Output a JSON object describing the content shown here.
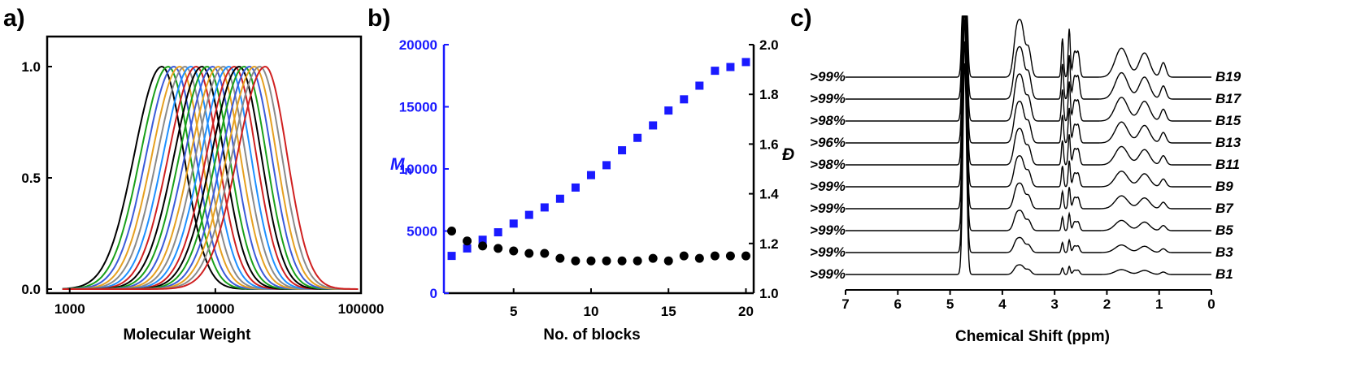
{
  "colors": {
    "blue_axis": "#1a1aff",
    "black": "#000000"
  },
  "panels": {
    "a": {
      "label": "a)"
    },
    "b": {
      "label": "b)"
    },
    "c": {
      "label": "c)"
    }
  },
  "chart_data": [
    {
      "panel": "a)",
      "type": "line",
      "xlabel": "Molecular Weight",
      "ylabel": "",
      "x_scale": "log",
      "xlim": [
        700,
        100000
      ],
      "ylim": [
        0,
        1.05
      ],
      "x_ticks": [
        "1000",
        "10000",
        "100000"
      ],
      "y_ticks": [
        "0.0",
        "0.5",
        "1.0"
      ],
      "curve_shape": "normalized log-normal distributions (peak = 1.0)",
      "series_colors": [
        "#000000",
        "#1aa01a",
        "#3b5bd9",
        "#e6a020",
        "#8a8a8a",
        "#1e90ff",
        "#d02020",
        "#000000",
        "#1aa01a",
        "#3b5bd9",
        "#e6a020",
        "#8a8a8a",
        "#1e90ff",
        "#d02020",
        "#000000",
        "#1aa01a",
        "#3b5bd9",
        "#e6a020",
        "#8a8a8a",
        "#d02020"
      ],
      "peak_mw": [
        4300,
        4750,
        5200,
        5700,
        6200,
        6800,
        7400,
        8100,
        8800,
        9600,
        10500,
        11400,
        12400,
        13500,
        14600,
        15800,
        17200,
        18600,
        20200,
        22000
      ]
    },
    {
      "panel": "b)",
      "type": "scatter",
      "xlabel": "No. of blocks",
      "y_left_label": "M",
      "y_left_label_sub": "n",
      "y_right_label": "Đ",
      "xlim": [
        0.5,
        20.5
      ],
      "y_left_lim": [
        0,
        20000
      ],
      "y_right_lim": [
        1.0,
        2.0
      ],
      "x_ticks": [
        "5",
        "10",
        "15",
        "20"
      ],
      "y_left_ticks": [
        "0",
        "5000",
        "10000",
        "15000",
        "20000"
      ],
      "y_right_ticks": [
        "1.0",
        "1.2",
        "1.4",
        "1.6",
        "1.8",
        "2.0"
      ],
      "x": [
        1,
        2,
        3,
        4,
        5,
        6,
        7,
        8,
        9,
        10,
        11,
        12,
        13,
        14,
        15,
        16,
        17,
        18,
        19,
        20
      ],
      "series": [
        {
          "axis": "left",
          "marker": "square",
          "color": "#1a1aff",
          "values": [
            3000,
            3600,
            4300,
            4900,
            5600,
            6300,
            6900,
            7600,
            8500,
            9500,
            10300,
            11500,
            12500,
            13500,
            14700,
            15600,
            16700,
            17900,
            18200,
            18600
          ]
        },
        {
          "axis": "right",
          "marker": "circle",
          "color": "#000000",
          "values": [
            1.25,
            1.21,
            1.19,
            1.18,
            1.17,
            1.16,
            1.16,
            1.14,
            1.13,
            1.13,
            1.13,
            1.13,
            1.13,
            1.14,
            1.13,
            1.15,
            1.14,
            1.15,
            1.15,
            1.15
          ]
        }
      ]
    },
    {
      "panel": "c)",
      "type": "line",
      "xlabel": "Chemical Shift (ppm)",
      "xlim": [
        7,
        0
      ],
      "x_ticks": [
        "7",
        "6",
        "5",
        "4",
        "3",
        "2",
        "1",
        "0"
      ],
      "spectra_bottom_to_top": [
        {
          "label": "B1",
          "conversion": ">99%"
        },
        {
          "label": "B3",
          "conversion": ">99%"
        },
        {
          "label": "B5",
          "conversion": ">99%"
        },
        {
          "label": "B7",
          "conversion": ">99%"
        },
        {
          "label": "B9",
          "conversion": ">99%"
        },
        {
          "label": "B11",
          "conversion": ">98%"
        },
        {
          "label": "B13",
          "conversion": ">96%"
        },
        {
          "label": "B15",
          "conversion": ">98%"
        },
        {
          "label": "B17",
          "conversion": ">99%"
        },
        {
          "label": "B19",
          "conversion": ">99%"
        }
      ]
    }
  ]
}
